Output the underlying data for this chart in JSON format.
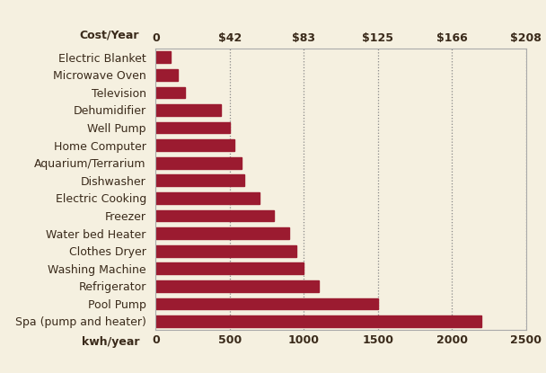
{
  "categories": [
    "Spa (pump and heater)",
    "Pool Pump",
    "Refrigerator",
    "Washing Machine",
    "Clothes Dryer",
    "Water bed Heater",
    "Freezer",
    "Electric Cooking",
    "Dishwasher",
    "Aquarium/Terrarium",
    "Home Computer",
    "Well Pump",
    "Dehumidifier",
    "Television",
    "Microwave Oven",
    "Electric Blanket"
  ],
  "values": [
    2200,
    1500,
    1100,
    1000,
    950,
    900,
    800,
    700,
    600,
    580,
    530,
    500,
    440,
    200,
    150,
    100
  ],
  "bar_color": "#9B1B30",
  "background_color": "#F5F0E0",
  "border_color": "#aaaaaa",
  "top_label": "Cost/Year",
  "bottom_label": "kwh/year",
  "xlim": [
    0,
    2500
  ],
  "cost_ticks": [
    0,
    500,
    1000,
    1500,
    2000,
    2500
  ],
  "cost_labels": [
    "0",
    "$42",
    "$83",
    "$125",
    "$166",
    "$208"
  ],
  "x_ticks": [
    0,
    500,
    1000,
    1500,
    2000,
    2500
  ],
  "x_labels": [
    "0",
    "500",
    "1000",
    "1500",
    "2000",
    "2500"
  ],
  "dashed_x": [
    500,
    1000,
    1500,
    2000,
    2500
  ],
  "label_fontsize": 9,
  "tick_fontsize": 9,
  "ylabel_fontsize": 9,
  "bar_height": 0.65,
  "text_color": "#3a2a1a",
  "label_color": "#5a3a1a"
}
